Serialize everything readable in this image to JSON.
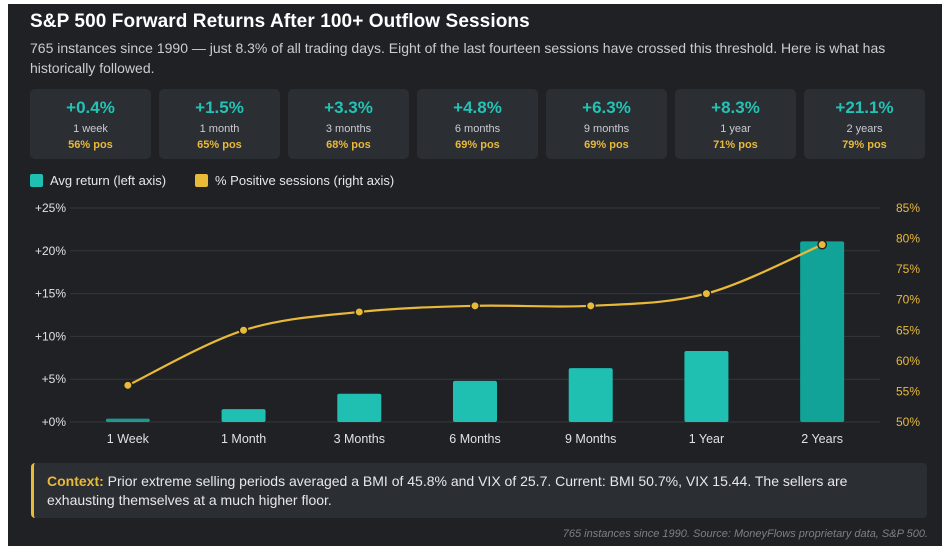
{
  "title": "S&P 500 Forward Returns After 100+ Outflow Sessions",
  "subtitle": "765 instances since 1990 — just 8.3% of all trading days. Eight of the last fourteen sessions have crossed this threshold. Here is what has historically followed.",
  "cards": [
    {
      "ret": "+0.4%",
      "period": "1 week",
      "pos": "56% pos"
    },
    {
      "ret": "+1.5%",
      "period": "1 month",
      "pos": "65% pos"
    },
    {
      "ret": "+3.3%",
      "period": "3 months",
      "pos": "68% pos"
    },
    {
      "ret": "+4.8%",
      "period": "6 months",
      "pos": "69% pos"
    },
    {
      "ret": "+6.3%",
      "period": "9 months",
      "pos": "69% pos"
    },
    {
      "ret": "+8.3%",
      "period": "1 year",
      "pos": "71% pos"
    },
    {
      "ret": "+21.1%",
      "period": "2 years",
      "pos": "79% pos"
    }
  ],
  "colors": {
    "bar": "#1fbfb1",
    "bar_last": "#11a397",
    "line": "#e9b93a",
    "grid": "#34373c",
    "axis_text_left": "#dfe1e4",
    "axis_text_right": "#e9b93a"
  },
  "chart_data": {
    "type": "bar",
    "categories": [
      "1 Week",
      "1 Month",
      "3 Months",
      "6 Months",
      "9 Months",
      "1 Year",
      "2 Years"
    ],
    "series": [
      {
        "name": "Avg return (left axis)",
        "type": "bar",
        "axis": "left",
        "values": [
          0.4,
          1.5,
          3.3,
          4.8,
          6.3,
          8.3,
          21.1
        ]
      },
      {
        "name": "% Positive sessions (right axis)",
        "type": "line",
        "axis": "right",
        "values": [
          56,
          65,
          68,
          69,
          69,
          71,
          79
        ]
      }
    ],
    "y_left": {
      "ylim": [
        0,
        25
      ],
      "ticks": [
        0,
        5,
        10,
        15,
        20,
        25
      ],
      "tick_labels": [
        "+0%",
        "+5%",
        "+10%",
        "+15%",
        "+20%",
        "+25%"
      ]
    },
    "y_right": {
      "ylim": [
        50,
        85
      ],
      "ticks": [
        50,
        55,
        60,
        65,
        70,
        75,
        80,
        85
      ],
      "tick_labels": [
        "50%",
        "55%",
        "60%",
        "65%",
        "70%",
        "75%",
        "80%",
        "85%"
      ]
    },
    "grid": true,
    "legend_position": "top-left"
  },
  "context": {
    "label": "Context:",
    "text": " Prior extreme selling periods averaged a BMI of 45.8% and VIX of 25.7. Current: BMI 50.7%, VIX 15.44. The sellers are exhausting themselves at a much higher floor."
  },
  "footer": "765 instances since 1990. Source: MoneyFlows proprietary data, S&P 500."
}
